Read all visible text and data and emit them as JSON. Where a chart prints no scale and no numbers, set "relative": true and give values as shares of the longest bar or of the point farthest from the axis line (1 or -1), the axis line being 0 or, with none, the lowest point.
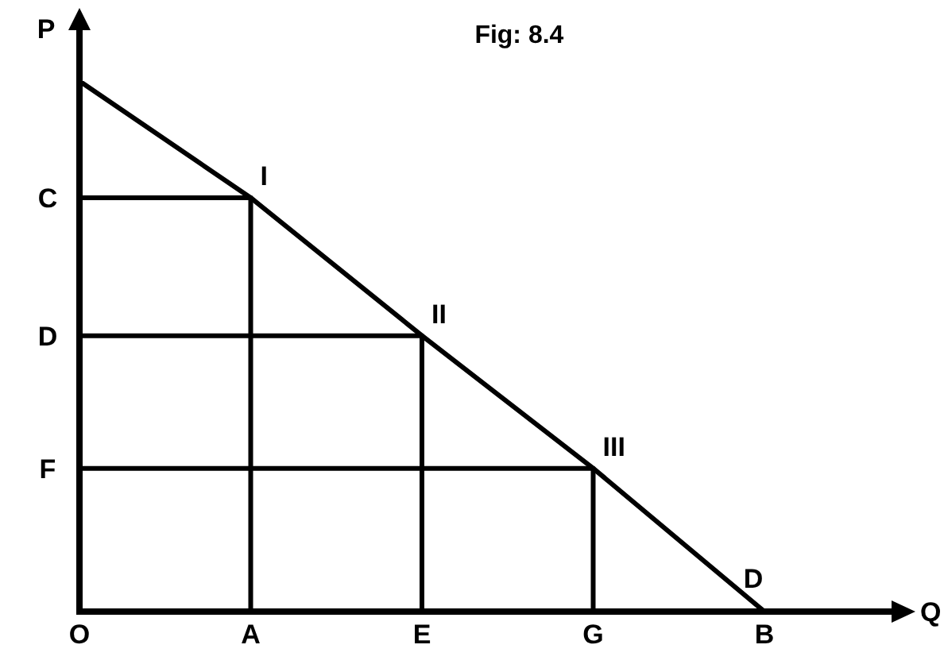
{
  "chart_data": {
    "type": "line",
    "title": "Fig: 8.4",
    "xlabel": "Q",
    "ylabel": "P",
    "relative": true,
    "line_style": "solid",
    "categories": [
      "O",
      "A",
      "E",
      "G",
      "B"
    ],
    "series": [
      {
        "color": "#000000",
        "values": [
          1,
          0.78,
          0.52,
          0.27,
          0
        ]
      },
      {
        "color": "#000000",
        "x": [
          "O",
          "A",
          "A"
        ],
        "values": [
          0.78,
          0.78,
          0
        ]
      },
      {
        "color": "#000000",
        "x": [
          "O",
          "E",
          "E"
        ],
        "values": [
          0.52,
          0.52,
          0
        ]
      },
      {
        "color": "#000000",
        "x": [
          "O",
          "G",
          "G"
        ],
        "values": [
          0.27,
          0.27,
          0
        ]
      }
    ],
    "annotations": [
      {
        "text": "C",
        "x": "O",
        "y": 0.78
      },
      {
        "text": "D",
        "x": "O",
        "y": 0.52
      },
      {
        "text": "F",
        "x": "O",
        "y": 0.27
      },
      {
        "text": "I",
        "x": "A",
        "y": 0.78
      },
      {
        "text": "II",
        "x": "E",
        "y": 0.52
      },
      {
        "text": "III",
        "x": "G",
        "y": 0.27
      },
      {
        "text": "D",
        "x": "B",
        "y": 0
      }
    ]
  }
}
